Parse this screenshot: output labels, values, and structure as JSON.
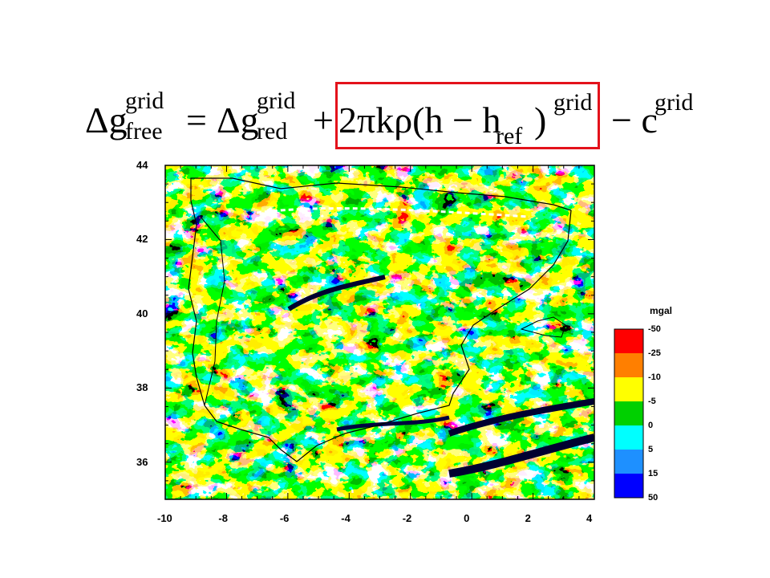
{
  "formula": {
    "lhs_main": "Δg",
    "lhs_sup": "grid",
    "lhs_sub": "free",
    "eq": "=",
    "rhs1_main": "Δg",
    "rhs1_sup": "grid",
    "rhs1_sub": "red",
    "plus": "+",
    "term_main": "2πkρ(h − h",
    "term_sub": "ref",
    "term_close": " )",
    "term_sup": "grid",
    "minus": "− c",
    "c_sup": "grid"
  },
  "map": {
    "x_ticks": [
      "-10",
      "-8",
      "-6",
      "-4",
      "-2",
      "0",
      "2",
      "4"
    ],
    "y_ticks": [
      "44",
      "42",
      "40",
      "38",
      "36"
    ],
    "xlim": [
      -10,
      4
    ],
    "ylim": [
      35,
      44
    ]
  },
  "legend": {
    "title": "mgal",
    "labels": [
      "-50",
      "-25",
      "-10",
      "-5",
      "0",
      "5",
      "15",
      "50"
    ],
    "colors": [
      "#ff0000",
      "#ff7f00",
      "#ffff00",
      "#00d000",
      "#00ffff",
      "#1e90ff",
      "#0000ff"
    ]
  },
  "colors": {
    "highlight_box": "#e3121b",
    "coastline": "#000000"
  }
}
